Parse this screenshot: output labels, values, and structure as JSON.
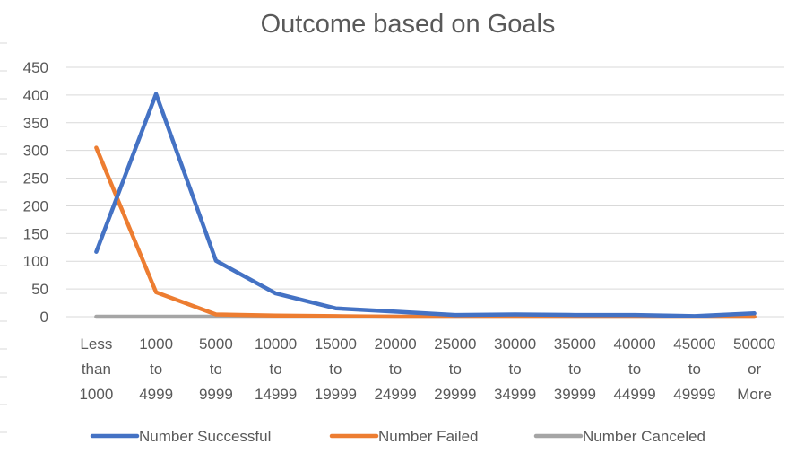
{
  "chart_data": {
    "type": "line",
    "title": "Outcome based on Goals",
    "xlabel": "",
    "ylabel": "",
    "ylim": [
      0,
      450
    ],
    "yticks": [
      0,
      50,
      100,
      150,
      200,
      250,
      300,
      350,
      400,
      450
    ],
    "categories": [
      [
        "Less",
        "than",
        "1000"
      ],
      [
        "1000",
        "to",
        "4999"
      ],
      [
        "5000",
        "to",
        "9999"
      ],
      [
        "10000",
        "to",
        "14999"
      ],
      [
        "15000",
        "to",
        "19999"
      ],
      [
        "20000",
        "to",
        "24999"
      ],
      [
        "25000",
        "to",
        "29999"
      ],
      [
        "30000",
        "to",
        "34999"
      ],
      [
        "35000",
        "to",
        "39999"
      ],
      [
        "40000",
        "to",
        "44999"
      ],
      [
        "45000",
        "to",
        "49999"
      ],
      [
        "50000",
        "or",
        "More"
      ]
    ],
    "series": [
      {
        "name": "Number Successful",
        "color": "#4472C4",
        "values": [
          117,
          402,
          101,
          42,
          15,
          9,
          3,
          4,
          3,
          3,
          1,
          6
        ]
      },
      {
        "name": "Number Failed",
        "color": "#ED7D31",
        "values": [
          305,
          44,
          4,
          2,
          1,
          0,
          0,
          0,
          0,
          0,
          0,
          0
        ]
      },
      {
        "name": "Number Canceled",
        "color": "#A5A5A5",
        "values": [
          0,
          0,
          0,
          0,
          0,
          0,
          0,
          0,
          0,
          0,
          0,
          0
        ]
      }
    ],
    "grid": true,
    "legend": "bottom"
  }
}
